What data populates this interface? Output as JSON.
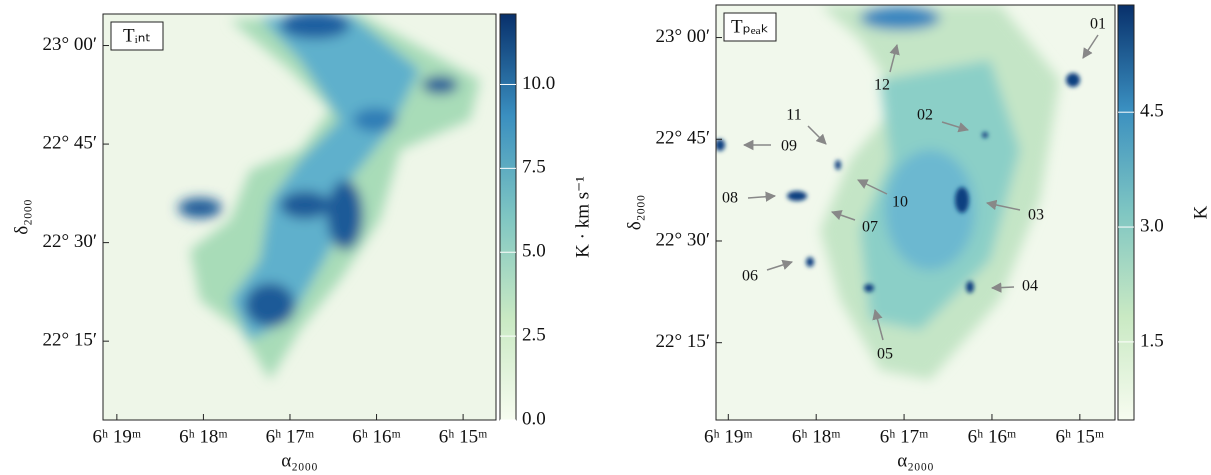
{
  "chart_data": [
    {
      "type": "image",
      "panel_label": "Tᵢₙₜ",
      "x_label": "α₂₀₀₀",
      "y_label": "δ₂₀₀₀",
      "colorbar_label": "K · km s⁻¹",
      "xlim": [
        19.16,
        14.62
      ],
      "ylim": [
        22.05,
        23.08
      ],
      "clim": [
        0,
        12.1
      ],
      "xticks": [
        {
          "value": 19,
          "label": "6ʰ 19ᵐ"
        },
        {
          "value": 18,
          "label": "6ʰ 18ᵐ"
        },
        {
          "value": 17,
          "label": "6ʰ 17ᵐ"
        },
        {
          "value": 16,
          "label": "6ʰ 16ᵐ"
        },
        {
          "value": 15,
          "label": "6ʰ 15ᵐ"
        }
      ],
      "yticks": [
        {
          "value": 23.0,
          "label": "23° 00′"
        },
        {
          "value": 22.75,
          "label": "22° 45′"
        },
        {
          "value": 22.5,
          "label": "22° 30′"
        },
        {
          "value": 22.25,
          "label": "22° 15′"
        }
      ],
      "cticks": [
        {
          "value": 0,
          "label": "0.0"
        },
        2.5,
        {
          "value": 5,
          "label": "5.0"
        },
        7.5,
        {
          "value": 10,
          "label": "10.0"
        }
      ]
    },
    {
      "type": "image",
      "panel_label": "Tₚₑₐₖ",
      "x_label": "α₂₀₀₀",
      "y_label": "δ₂₀₀₀",
      "colorbar_label": "K",
      "xlim": [
        19.14,
        14.6
      ],
      "ylim": [
        22.06,
        23.08
      ],
      "clim": [
        0.48,
        5.9
      ],
      "xticks": [
        {
          "value": 19,
          "label": "6ʰ 19ᵐ"
        },
        {
          "value": 18,
          "label": "6ʰ 18ᵐ"
        },
        {
          "value": 17,
          "label": "6ʰ 17ᵐ"
        },
        {
          "value": 16,
          "label": "6ʰ 16ᵐ"
        },
        {
          "value": 15,
          "label": "6ʰ 15ᵐ"
        }
      ],
      "yticks": [
        {
          "value": 23.0,
          "label": "23° 00′"
        },
        {
          "value": 22.75,
          "label": "22° 45′"
        },
        {
          "value": 22.5,
          "label": "22° 30′"
        },
        {
          "value": 22.25,
          "label": "22° 15′"
        }
      ],
      "cticks": [
        1.5,
        {
          "value": 3,
          "label": "3.0"
        },
        4.5
      ],
      "annotations": [
        "01",
        "02",
        "03",
        "04",
        "05",
        "06",
        "07",
        "08",
        "09",
        "10",
        "11",
        "12"
      ]
    }
  ]
}
